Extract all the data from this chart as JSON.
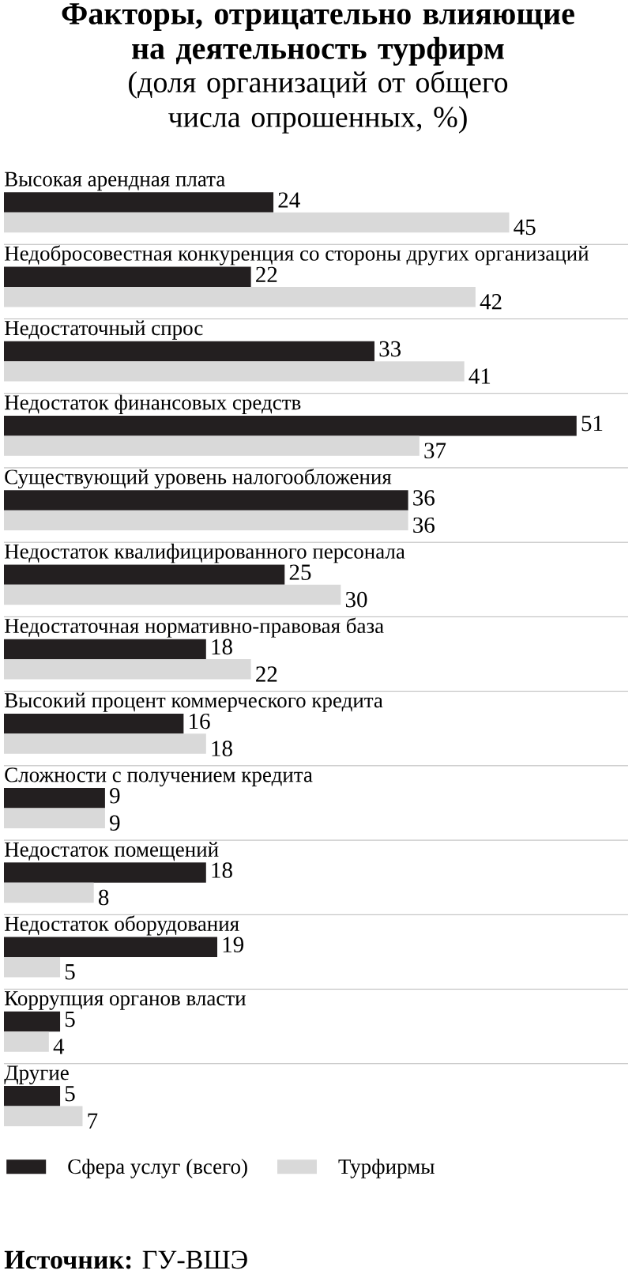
{
  "chart_data": {
    "type": "bar",
    "orientation": "horizontal",
    "title": "Факторы, отрицательно влияющие на деятельность турфирм",
    "subtitle": "(доля организаций от общего числа опрошенных, %)",
    "categories": [
      "Высокая арендная плата",
      "Недобросовестная конкуренция со стороны других организаций",
      "Недостаточный спрос",
      "Недостаток  финансовых средств",
      "Существующий уровень налогообложения",
      "Недостаток квалифицированного персонала",
      "Недостаточная нормативно-правовая база",
      "Высокий процент коммерческого кредита",
      "Сложности с получением кредита",
      "Недостаток помещений",
      "Недостаток оборудования",
      "Коррупция органов власти",
      "Другие"
    ],
    "series": [
      {
        "name": "Сфера услуг (всего)",
        "color": "#231f20",
        "values": [
          24,
          22,
          33,
          51,
          36,
          25,
          18,
          16,
          9,
          18,
          19,
          5,
          5
        ]
      },
      {
        "name": "Турфирмы",
        "color": "#d9d9d9",
        "values": [
          45,
          42,
          41,
          37,
          36,
          30,
          22,
          18,
          9,
          8,
          5,
          4,
          7
        ]
      }
    ],
    "data_labels": true,
    "grid": "y",
    "legend": "bottom left",
    "annotations": [
      "**Источник:** ГУ-ВШЭ"
    ]
  }
}
